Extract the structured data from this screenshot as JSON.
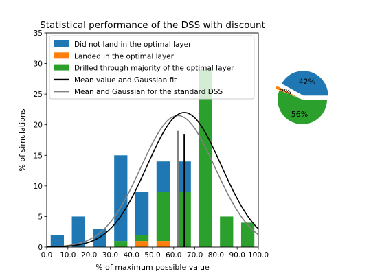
{
  "chart_data": [
    {
      "type": "bar",
      "title": "Statistical performance of the DSS with discount",
      "xlabel": "% of maximum possible value",
      "ylabel": "% of simulations",
      "xlim": [
        0,
        100
      ],
      "ylim": [
        0,
        35
      ],
      "xticks": [
        "0.0",
        "10.0",
        "20.0",
        "30.0",
        "40.0",
        "50.0",
        "60.0",
        "70.0",
        "80.0",
        "90.0",
        "100.0"
      ],
      "yticks": [
        "0",
        "5",
        "10",
        "15",
        "20",
        "25",
        "30",
        "35"
      ],
      "stacked": true,
      "bin_centers": [
        5,
        15,
        25,
        35,
        45,
        55,
        65,
        75,
        85,
        95
      ],
      "bar_width": 6.25,
      "series": [
        {
          "name": "Landed in the optimal layer",
          "color": "#ff7f0e",
          "values": [
            0,
            0,
            0,
            0,
            1,
            1,
            0,
            0,
            0,
            0
          ]
        },
        {
          "name": "Drilled through majority of the optimal layer",
          "color": "#2ca02c",
          "values": [
            0,
            0,
            0,
            1,
            1,
            8,
            9,
            29,
            5,
            4
          ]
        },
        {
          "name": "Did not land in the optimal layer",
          "color": "#1f77b4",
          "values": [
            2,
            5,
            3,
            14,
            7,
            5,
            5,
            0,
            0,
            0
          ]
        }
      ],
      "gaussians": [
        {
          "name": "Mean value and Gaussian fit",
          "color": "#000000",
          "mean": 65,
          "sigma": 17.5,
          "peak": 22,
          "mean_line_height": 18.5
        },
        {
          "name": "Mean and Gaussian for the standard DSS",
          "color": "#808080",
          "mean": 62,
          "sigma": 17.5,
          "peak": 21.5,
          "mean_line_height": 19
        }
      ],
      "legend": {
        "placement": "upper-right",
        "entries": [
          {
            "label": "Did not land in the optimal layer",
            "color": "#1f77b4",
            "kind": "patch"
          },
          {
            "label": "Landed in the optimal layer",
            "color": "#ff7f0e",
            "kind": "patch"
          },
          {
            "label": "Drilled through majority of the optimal layer",
            "color": "#2ca02c",
            "kind": "patch"
          },
          {
            "label": "Mean value and Gaussian fit",
            "color": "#000000",
            "kind": "line"
          },
          {
            "label": "Mean and Gaussian for the standard DSS",
            "color": "#808080",
            "kind": "line"
          }
        ]
      },
      "grid": false
    },
    {
      "type": "pie",
      "slices": [
        {
          "label": "42%",
          "value": 42,
          "color": "#1f77b4",
          "exploded": true
        },
        {
          "label": "2%",
          "value": 2,
          "color": "#ff7f0e",
          "exploded": true
        },
        {
          "label": "56%",
          "value": 56,
          "color": "#2ca02c",
          "exploded": false
        }
      ],
      "start_angle": 0
    }
  ]
}
